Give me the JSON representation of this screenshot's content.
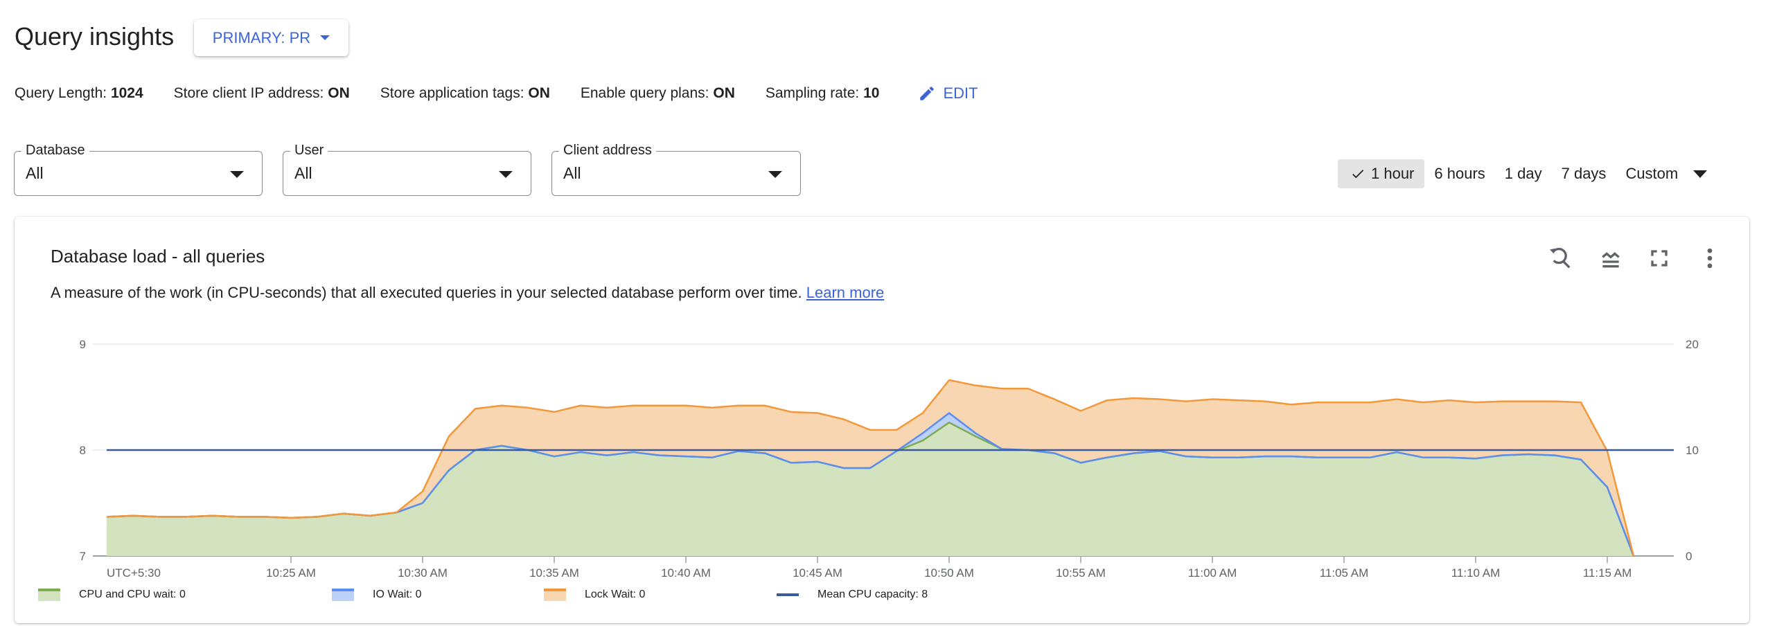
{
  "header": {
    "title": "Query insights",
    "instance_label": "PRIMARY: PR"
  },
  "settings": {
    "items": [
      {
        "label": "Query Length:",
        "value": "1024"
      },
      {
        "label": "Store client IP address:",
        "value": "ON"
      },
      {
        "label": "Store application tags:",
        "value": "ON"
      },
      {
        "label": "Enable query plans:",
        "value": "ON"
      },
      {
        "label": "Sampling rate:",
        "value": "10"
      }
    ],
    "edit_label": "EDIT",
    "edit_icon": "pencil-icon"
  },
  "filters": [
    {
      "label": "Database",
      "value": "All"
    },
    {
      "label": "User",
      "value": "All"
    },
    {
      "label": "Client address",
      "value": "All"
    }
  ],
  "time_range": {
    "options": [
      "1 hour",
      "6 hours",
      "1 day",
      "7 days"
    ],
    "custom_label": "Custom",
    "selected": "1 hour"
  },
  "card": {
    "title": "Database load - all queries",
    "description": "A measure of the work (in CPU-seconds) that all executed queries in your selected database perform over time.",
    "learn_more": "Learn more",
    "icons": [
      "reset-zoom-icon",
      "legend-toggle-icon",
      "fullscreen-icon",
      "more-vert-icon"
    ]
  },
  "colors": {
    "accent": "#3c64d8",
    "cpu": "#7cac4f",
    "cpu_fill": "#d3e2bf",
    "io": "#5b8ef0",
    "io_fill": "#bcd0f8",
    "lock": "#f29839",
    "lock_fill": "#f8d6b2",
    "mean": "#3a5aa0"
  },
  "chart_data": {
    "type": "area",
    "stacked": true,
    "x_timezone_label": "UTC+5:30",
    "x_tick_labels": [
      "10:25 AM",
      "10:30 AM",
      "10:35 AM",
      "10:40 AM",
      "10:45 AM",
      "10:50 AM",
      "10:55 AM",
      "11:00 AM",
      "11:05 AM",
      "11:10 AM",
      "11:15 AM"
    ],
    "x_tick_times": [
      "10:25",
      "10:30",
      "10:35",
      "10:40",
      "10:45",
      "10:50",
      "10:55",
      "11:00",
      "11:05",
      "11:10",
      "11:15"
    ],
    "x": [
      "10:18",
      "10:19",
      "10:20",
      "10:21",
      "10:22",
      "10:23",
      "10:24",
      "10:25",
      "10:26",
      "10:27",
      "10:28",
      "10:29",
      "10:30",
      "10:31",
      "10:32",
      "10:33",
      "10:34",
      "10:35",
      "10:36",
      "10:37",
      "10:38",
      "10:39",
      "10:40",
      "10:41",
      "10:42",
      "10:43",
      "10:44",
      "10:45",
      "10:46",
      "10:47",
      "10:48",
      "10:49",
      "10:50",
      "10:51",
      "10:52",
      "10:53",
      "10:54",
      "10:55",
      "10:56",
      "10:57",
      "10:58",
      "10:59",
      "11:00",
      "11:01",
      "11:02",
      "11:03",
      "11:04",
      "11:05",
      "11:06",
      "11:07",
      "11:08",
      "11:09",
      "11:10",
      "11:11",
      "11:12",
      "11:13",
      "11:14",
      "11:15",
      "11:16"
    ],
    "xlim": [
      "10:18",
      "11:17"
    ],
    "y_right": {
      "ylim": [
        0,
        20
      ],
      "ticks": [
        "0",
        "10",
        "20"
      ]
    },
    "y_left": {
      "ylim": [
        7,
        9
      ],
      "ticks": [
        "7",
        "8",
        "9"
      ]
    },
    "grid": true,
    "legend_position": "bottom",
    "series": [
      {
        "name": "CPU and CPU wait",
        "legend_value": "0",
        "axis": "right",
        "values": [
          3.7,
          3.8,
          3.7,
          3.7,
          3.8,
          3.7,
          3.7,
          3.6,
          3.7,
          4.0,
          3.8,
          4.1,
          5.0,
          8.1,
          10.0,
          10.4,
          10.0,
          9.4,
          9.8,
          9.5,
          9.8,
          9.5,
          9.4,
          9.3,
          9.9,
          9.7,
          8.8,
          8.9,
          8.3,
          8.3,
          9.9,
          10.9,
          12.6,
          11.3,
          10.1,
          10.0,
          9.7,
          8.8,
          9.3,
          9.7,
          9.9,
          9.4,
          9.3,
          9.3,
          9.4,
          9.4,
          9.3,
          9.3,
          9.3,
          9.8,
          9.3,
          9.3,
          9.2,
          9.5,
          9.6,
          9.5,
          9.1,
          6.5,
          0
        ]
      },
      {
        "name": "IO Wait",
        "legend_value": "0",
        "axis": "right",
        "values": [
          0,
          0,
          0,
          0,
          0,
          0,
          0,
          0,
          0,
          0,
          0,
          0,
          0,
          0,
          0,
          0,
          0,
          0,
          0,
          0,
          0,
          0,
          0,
          0,
          0,
          0,
          0,
          0,
          0,
          0,
          0,
          0.7,
          0.9,
          0.3,
          0,
          0,
          0,
          0,
          0,
          0,
          0,
          0,
          0,
          0,
          0,
          0,
          0,
          0,
          0,
          0,
          0,
          0,
          0,
          0,
          0,
          0,
          0,
          0,
          0
        ]
      },
      {
        "name": "Lock Wait",
        "legend_value": "0",
        "axis": "right",
        "values": [
          0,
          0,
          0,
          0,
          0,
          0,
          0,
          0,
          0,
          0,
          0,
          0,
          1.1,
          3.2,
          3.9,
          3.8,
          4.0,
          4.2,
          4.4,
          4.5,
          4.4,
          4.7,
          4.8,
          4.7,
          4.3,
          4.5,
          4.8,
          4.6,
          4.6,
          3.6,
          2.0,
          1.9,
          3.1,
          4.5,
          5.7,
          5.8,
          5.1,
          4.9,
          5.4,
          5.2,
          4.9,
          5.2,
          5.5,
          5.4,
          5.2,
          4.9,
          5.2,
          5.2,
          5.2,
          5.0,
          5.2,
          5.4,
          5.3,
          5.1,
          5.0,
          5.1,
          5.4,
          3.4,
          0
        ]
      }
    ],
    "reference_line": {
      "name": "Mean CPU capacity",
      "legend_value": "8",
      "axis": "left",
      "value": 8
    }
  }
}
